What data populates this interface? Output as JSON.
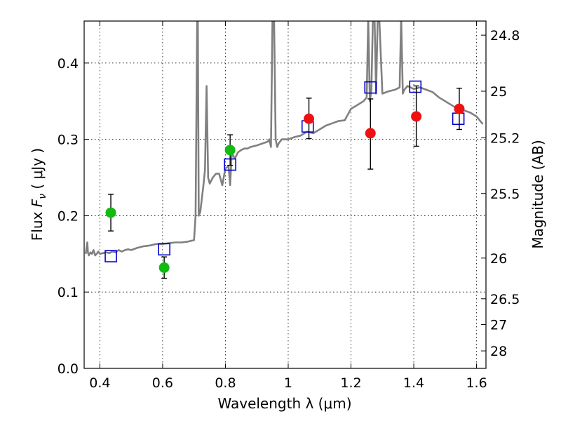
{
  "chart_data": {
    "type": "scatter",
    "title": "",
    "xlabel": "Wavelength  λ (μm)",
    "ylabel": "Flux  F_ν  ( μJy )",
    "ylabel_parts": {
      "prefix": "Flux  ",
      "symbol": "F",
      "subscript": "ν",
      "suffix": "  ( μJy )"
    },
    "y2label": "Magnitude (AB)",
    "xlim": [
      0.35,
      1.63
    ],
    "ylim": [
      0.0,
      0.455
    ],
    "grid": true,
    "x_ticks": [
      {
        "value": 0.4,
        "label": "0.4"
      },
      {
        "value": 0.6,
        "label": "0.6"
      },
      {
        "value": 0.8,
        "label": "0.8"
      },
      {
        "value": 1.0,
        "label": "1"
      },
      {
        "value": 1.2,
        "label": "1.2"
      },
      {
        "value": 1.4,
        "label": "1.4"
      },
      {
        "value": 1.6,
        "label": "1.6"
      }
    ],
    "y_ticks": [
      {
        "value": 0.0,
        "label": "0.0"
      },
      {
        "value": 0.1,
        "label": "0.1"
      },
      {
        "value": 0.2,
        "label": "0.2"
      },
      {
        "value": 0.3,
        "label": "0.3"
      },
      {
        "value": 0.4,
        "label": "0.4"
      }
    ],
    "y2_ticks": [
      {
        "flux": 0.4365,
        "label": "24.8"
      },
      {
        "flux": 0.3631,
        "label": "25"
      },
      {
        "flux": 0.302,
        "label": "25.2"
      },
      {
        "flux": 0.2291,
        "label": "25.5"
      },
      {
        "flux": 0.1445,
        "label": "26"
      },
      {
        "flux": 0.0912,
        "label": "26.5"
      },
      {
        "flux": 0.0575,
        "label": "27"
      },
      {
        "flux": 0.0229,
        "label": "28"
      }
    ],
    "series": [
      {
        "kind": "line",
        "color": "#808080",
        "x": [
          0.355,
          0.36,
          0.362,
          0.365,
          0.37,
          0.375,
          0.38,
          0.385,
          0.39,
          0.395,
          0.4,
          0.41,
          0.42,
          0.43,
          0.44,
          0.45,
          0.46,
          0.47,
          0.48,
          0.49,
          0.5,
          0.52,
          0.54,
          0.56,
          0.58,
          0.6,
          0.62,
          0.64,
          0.66,
          0.68,
          0.7,
          0.705,
          0.707,
          0.71,
          0.712,
          0.715,
          0.72,
          0.73,
          0.735,
          0.74,
          0.745,
          0.75,
          0.76,
          0.77,
          0.78,
          0.79,
          0.8,
          0.81,
          0.815,
          0.82,
          0.83,
          0.84,
          0.85,
          0.86,
          0.87,
          0.88,
          0.9,
          0.92,
          0.935,
          0.94,
          0.945,
          0.95,
          0.955,
          0.96,
          0.965,
          0.97,
          0.98,
          1.0,
          1.02,
          1.04,
          1.06,
          1.08,
          1.1,
          1.12,
          1.14,
          1.16,
          1.18,
          1.2,
          1.22,
          1.24,
          1.25,
          1.255,
          1.26,
          1.265,
          1.27,
          1.275,
          1.28,
          1.285,
          1.29,
          1.3,
          1.32,
          1.34,
          1.355,
          1.36,
          1.365,
          1.37,
          1.38,
          1.4,
          1.42,
          1.44,
          1.46,
          1.48,
          1.5,
          1.52,
          1.54,
          1.56,
          1.58,
          1.6,
          1.62
        ],
        "y": [
          0.15,
          0.165,
          0.152,
          0.148,
          0.152,
          0.15,
          0.155,
          0.148,
          0.15,
          0.153,
          0.15,
          0.151,
          0.152,
          0.151,
          0.153,
          0.152,
          0.155,
          0.153,
          0.155,
          0.156,
          0.155,
          0.158,
          0.16,
          0.161,
          0.163,
          0.163,
          0.164,
          0.165,
          0.165,
          0.166,
          0.168,
          0.2,
          0.3,
          0.46,
          0.46,
          0.2,
          0.205,
          0.24,
          0.26,
          0.37,
          0.25,
          0.242,
          0.25,
          0.255,
          0.255,
          0.24,
          0.262,
          0.265,
          0.24,
          0.282,
          0.275,
          0.283,
          0.286,
          0.288,
          0.288,
          0.29,
          0.292,
          0.295,
          0.297,
          0.3,
          0.29,
          0.46,
          0.46,
          0.3,
          0.29,
          0.295,
          0.3,
          0.3,
          0.303,
          0.305,
          0.31,
          0.308,
          0.313,
          0.318,
          0.321,
          0.324,
          0.325,
          0.34,
          0.345,
          0.35,
          0.355,
          0.46,
          0.35,
          0.365,
          0.46,
          0.46,
          0.36,
          0.46,
          0.46,
          0.36,
          0.363,
          0.365,
          0.368,
          0.46,
          0.36,
          0.365,
          0.37,
          0.366,
          0.368,
          0.365,
          0.362,
          0.355,
          0.35,
          0.345,
          0.34,
          0.338,
          0.335,
          0.33,
          0.32
        ]
      },
      {
        "kind": "squares",
        "color": "#0000cc",
        "points": [
          [
            0.435,
            0.147
          ],
          [
            0.605,
            0.156
          ],
          [
            0.815,
            0.267
          ],
          [
            1.062,
            0.317
          ],
          [
            1.262,
            0.368
          ],
          [
            1.405,
            0.369
          ],
          [
            1.542,
            0.327
          ]
        ]
      },
      {
        "kind": "points",
        "color": "#11bb11",
        "points": [
          {
            "x": 0.435,
            "y": 0.204,
            "err_low": 0.18,
            "err_high": 0.228
          },
          {
            "x": 0.605,
            "y": 0.132,
            "err_low": 0.118,
            "err_high": 0.146
          },
          {
            "x": 0.815,
            "y": 0.286,
            "err_low": 0.266,
            "err_high": 0.306
          }
        ]
      },
      {
        "kind": "points",
        "color": "#ee1111",
        "points": [
          {
            "x": 1.066,
            "y": 0.327,
            "err_low": 0.301,
            "err_high": 0.354
          },
          {
            "x": 1.262,
            "y": 0.308,
            "err_low": 0.261,
            "err_high": 0.353
          },
          {
            "x": 1.408,
            "y": 0.33,
            "err_low": 0.291,
            "err_high": 0.37
          },
          {
            "x": 1.545,
            "y": 0.34,
            "err_low": 0.313,
            "err_high": 0.367
          }
        ]
      }
    ]
  }
}
